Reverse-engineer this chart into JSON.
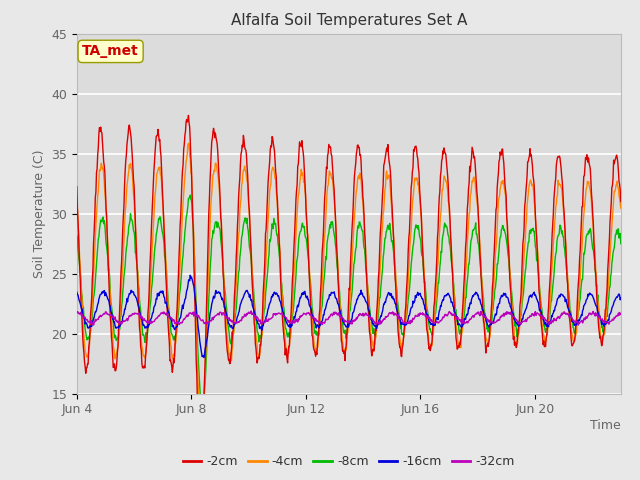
{
  "title": "Alfalfa Soil Temperatures Set A",
  "xlabel": "Time",
  "ylabel": "Soil Temperature (C)",
  "ylim": [
    15,
    45
  ],
  "annotation": "TA_met",
  "annotation_color": "#cc0000",
  "annotation_bg": "#ffffcc",
  "annotation_edge": "#999900",
  "x_tick_labels": [
    "Jun 4",
    "Jun 8",
    "Jun 12",
    "Jun 16",
    "Jun 20"
  ],
  "tick_color": "#666666",
  "legend_labels": [
    "-2cm",
    "-4cm",
    "-8cm",
    "-16cm",
    "-32cm"
  ],
  "legend_colors": [
    "#dd0000",
    "#ff8800",
    "#00bb00",
    "#0000dd",
    "#bb00bb"
  ],
  "bg_color": "#e8e8e8",
  "plot_bg_top": "#dcdcdc",
  "plot_bg_bottom": "#e8e8e8",
  "n_days": 19,
  "samples_per_day": 48,
  "title_fontsize": 11,
  "axis_fontsize": 9,
  "tick_fontsize": 9,
  "legend_fontsize": 9
}
